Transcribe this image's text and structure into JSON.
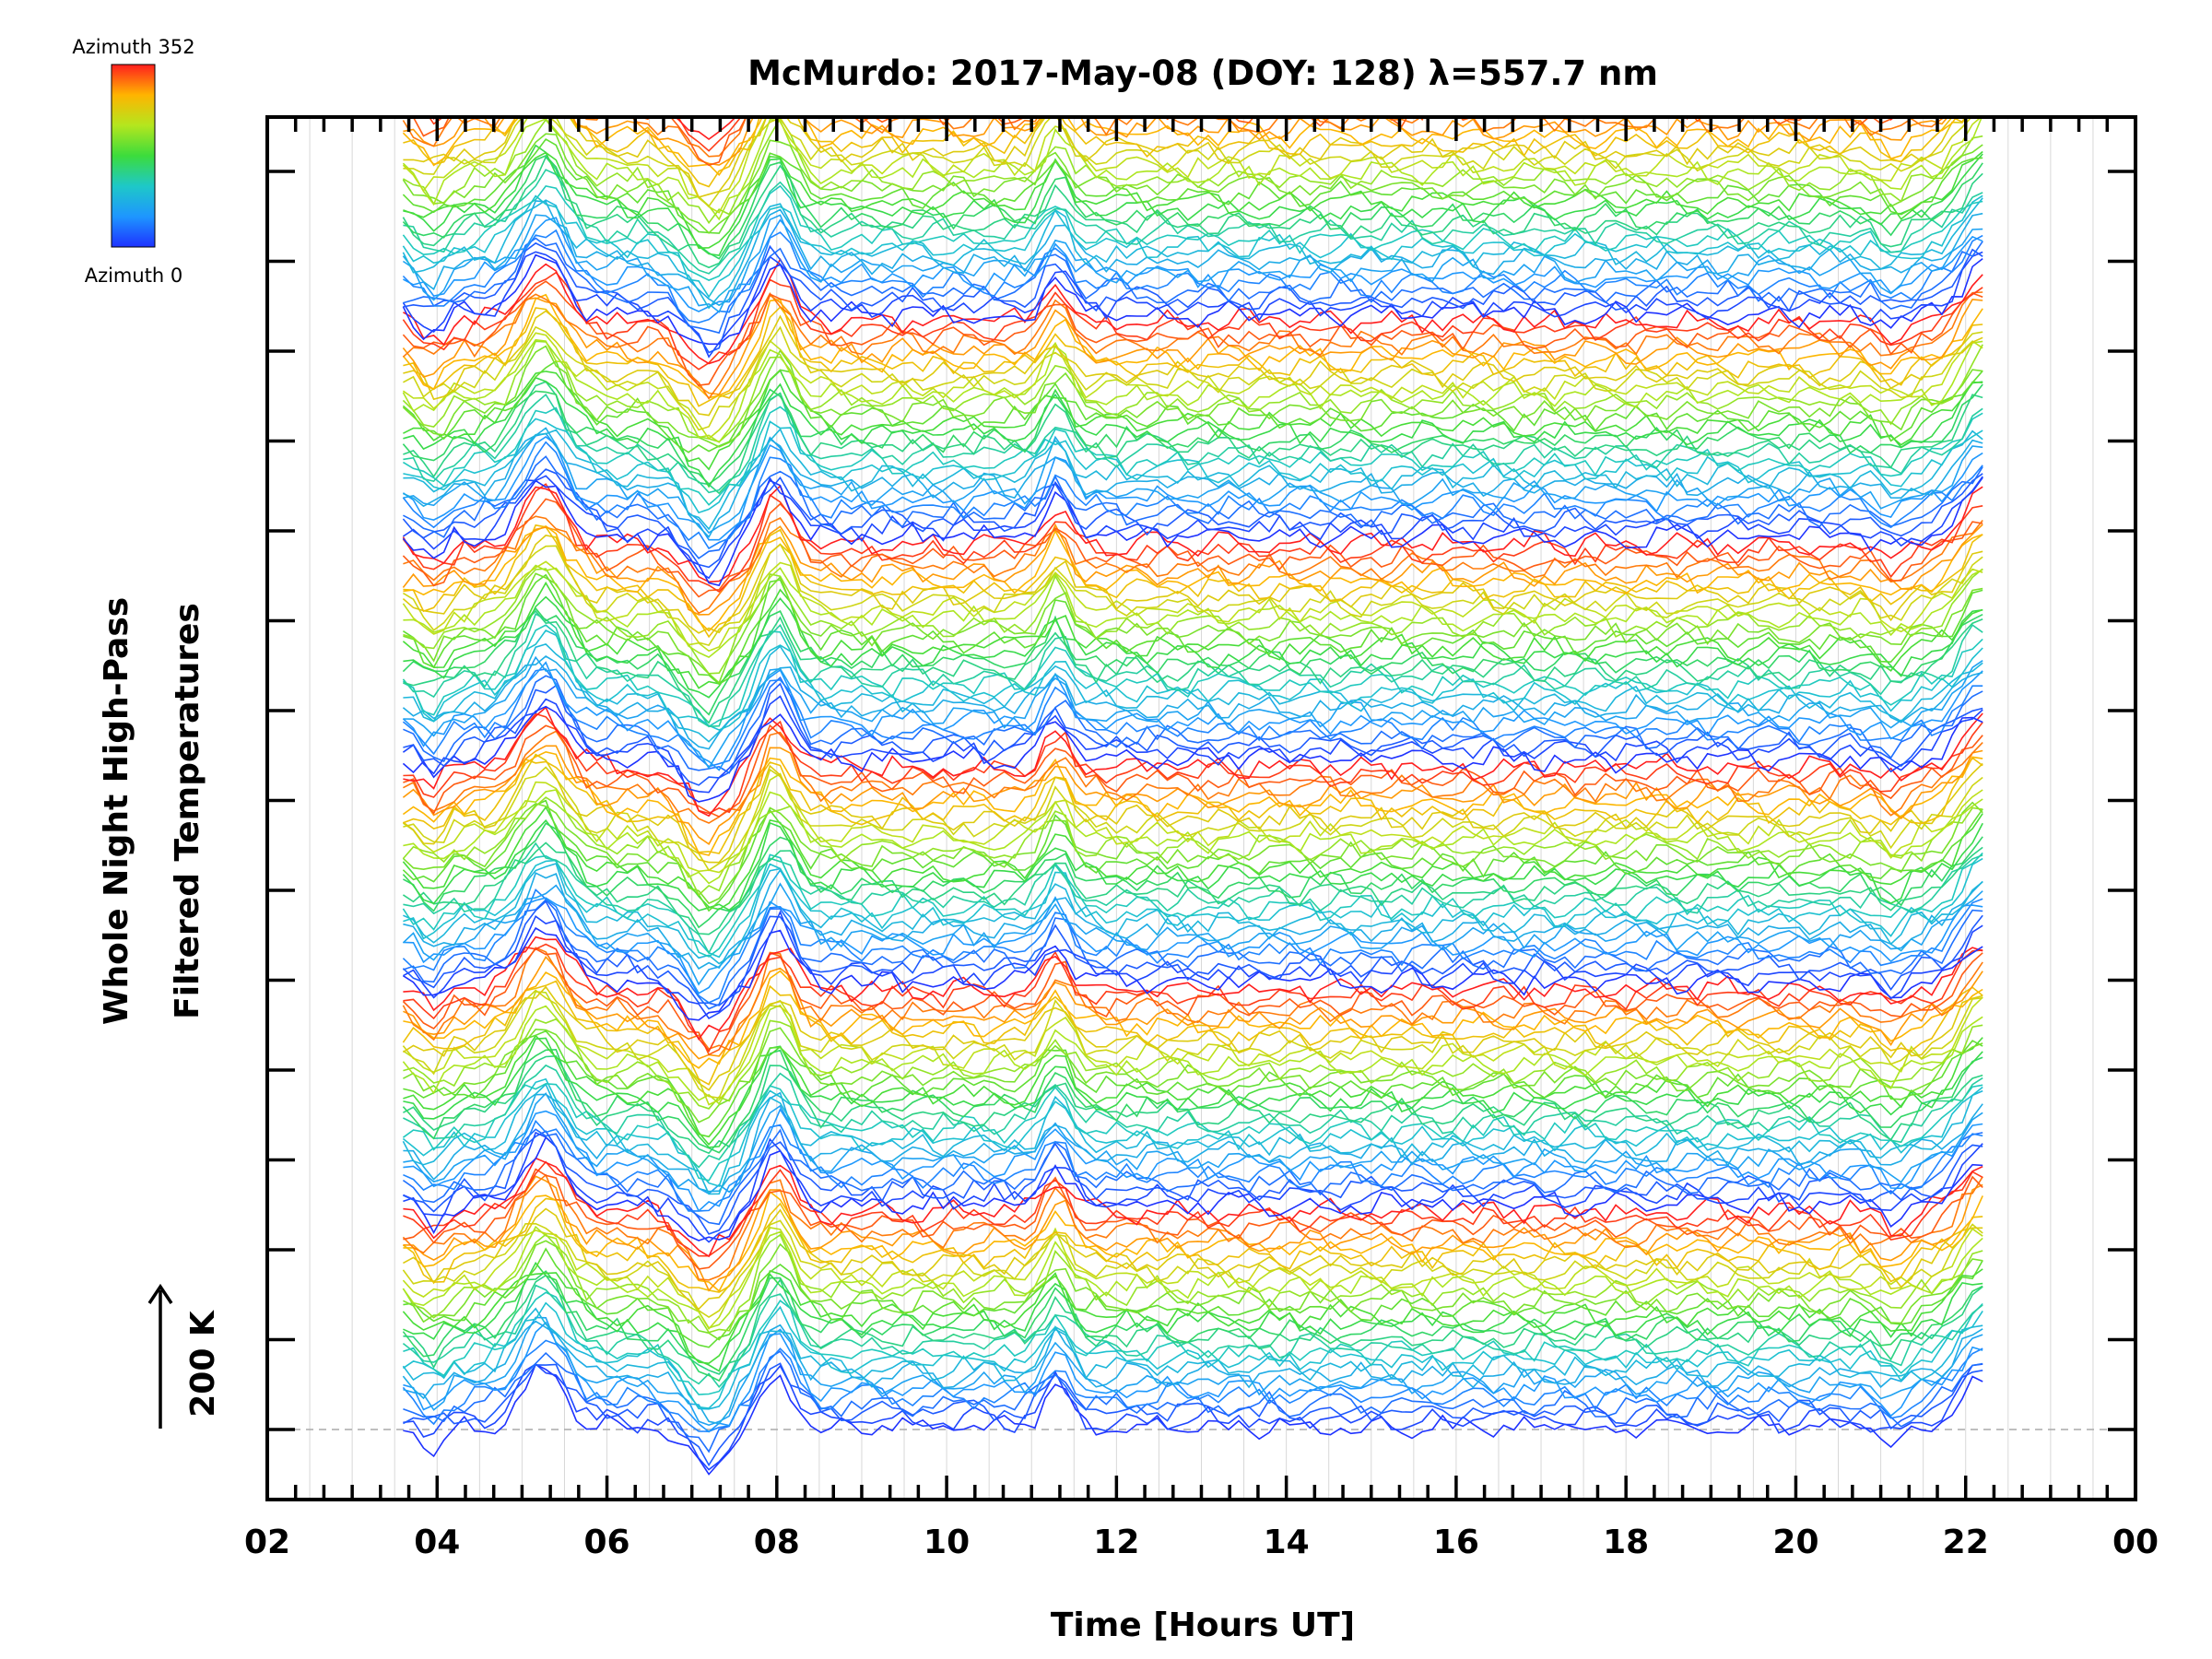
{
  "chart_data": {
    "type": "line",
    "title": "McMurdo: 2017-May-08 (DOY: 128) λ=557.7 nm",
    "xlabel": "Time [Hours UT]",
    "ylabel_lines": [
      "Whole Night High-Pass",
      "Filtered Temperatures"
    ],
    "scale_label": "200 K",
    "x_tick_labels": [
      "02",
      "04",
      "06",
      "08",
      "10",
      "12",
      "14",
      "16",
      "18",
      "20",
      "22",
      "00"
    ],
    "x_tick_hours": [
      2,
      4,
      6,
      8,
      10,
      12,
      14,
      16,
      18,
      20,
      22,
      24
    ],
    "xlim": [
      2,
      24
    ],
    "y_major_ticks": 15,
    "series_count": 180,
    "data_time_range": [
      3.6,
      22.25
    ],
    "colorbar": {
      "top_label": "Azimuth  352",
      "bottom_label": "Azimuth  0",
      "azimuth_range": [
        0,
        352
      ],
      "stops": [
        "#1e32ff",
        "#1e96ff",
        "#1ec8c8",
        "#3cdc3c",
        "#b4e61e",
        "#ffb400",
        "#ff1e1e"
      ]
    },
    "feature_hours": {
      "peaks": [
        5.25,
        8.0,
        11.3,
        22.2
      ],
      "troughs": [
        3.95,
        7.2,
        12.0,
        21.15
      ]
    }
  }
}
